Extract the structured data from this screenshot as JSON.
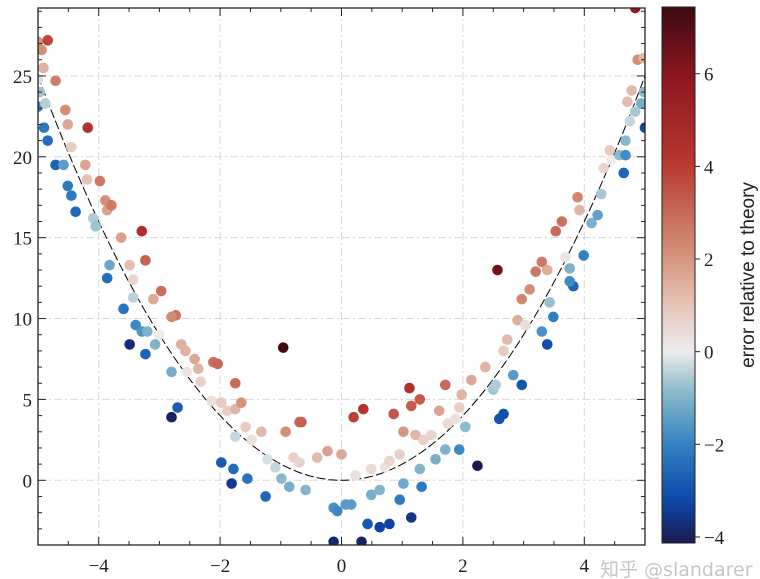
{
  "chart_data": {
    "type": "scatter",
    "title": "",
    "xlabel": "",
    "ylabel": "",
    "xlim": [
      -5,
      5
    ],
    "ylim": [
      -4,
      29.2
    ],
    "xticks": [
      -4,
      -2,
      0,
      2,
      4
    ],
    "yticks": [
      0,
      5,
      10,
      15,
      20,
      25
    ],
    "grid": true,
    "theory_curve": "y = x^2",
    "colorbar": {
      "label": "error relative to theory",
      "range": [
        -4.13,
        7.44
      ],
      "ticks": [
        -4,
        -2,
        0,
        2,
        4,
        6
      ],
      "colormap": [
        "#1a1a50",
        "#0d47a8",
        "#2f7fc1",
        "#8fbccc",
        "#ececec",
        "#e8c9bd",
        "#d28c74",
        "#b8372e",
        "#8c1620",
        "#3c0a10"
      ]
    },
    "points": [
      [
        -5.0,
        27.1
      ],
      [
        -4.84,
        27.2
      ],
      [
        -4.94,
        26.6
      ],
      [
        -4.91,
        25.5
      ],
      [
        -5.0,
        24.8
      ],
      [
        -4.97,
        24.0
      ],
      [
        -5.0,
        23.1
      ],
      [
        -4.88,
        23.3
      ],
      [
        -4.71,
        24.7
      ],
      [
        -4.9,
        21.8
      ],
      [
        -4.84,
        21.0
      ],
      [
        -4.71,
        19.5
      ],
      [
        -4.55,
        22.9
      ],
      [
        -4.51,
        22.0
      ],
      [
        -4.58,
        19.5
      ],
      [
        -4.51,
        18.2
      ],
      [
        -4.45,
        17.6
      ],
      [
        -4.38,
        16.6
      ],
      [
        -4.18,
        21.8
      ],
      [
        -4.45,
        20.6
      ],
      [
        -4.22,
        19.5
      ],
      [
        -4.19,
        18.6
      ],
      [
        -4.09,
        16.2
      ],
      [
        -4.05,
        15.7
      ],
      [
        -3.98,
        18.5
      ],
      [
        -3.89,
        17.3
      ],
      [
        -3.86,
        16.7
      ],
      [
        -3.79,
        17.0
      ],
      [
        -3.63,
        15.0
      ],
      [
        -3.82,
        13.3
      ],
      [
        -3.86,
        12.5
      ],
      [
        -3.29,
        15.4
      ],
      [
        -3.23,
        13.6
      ],
      [
        -3.49,
        13.3
      ],
      [
        -3.43,
        12.4
      ],
      [
        -3.43,
        11.3
      ],
      [
        -3.59,
        10.6
      ],
      [
        -3.39,
        9.6
      ],
      [
        -3.29,
        9.2
      ],
      [
        -3.2,
        9.2
      ],
      [
        -3.1,
        11.2
      ],
      [
        -2.97,
        11.7
      ],
      [
        -2.73,
        10.2
      ],
      [
        -2.8,
        10.1
      ],
      [
        -3.49,
        8.4
      ],
      [
        -3.23,
        7.8
      ],
      [
        -3.07,
        8.4
      ],
      [
        -3.0,
        9.0
      ],
      [
        -2.64,
        8.4
      ],
      [
        -2.57,
        8.0
      ],
      [
        -2.8,
        6.7
      ],
      [
        -2.55,
        6.7
      ],
      [
        -2.42,
        7.5
      ],
      [
        -2.36,
        6.9
      ],
      [
        -2.32,
        6.1
      ],
      [
        -2.11,
        7.3
      ],
      [
        -2.04,
        7.2
      ],
      [
        -2.7,
        4.5
      ],
      [
        -2.8,
        3.9
      ],
      [
        -1.75,
        6.0
      ],
      [
        -2.14,
        4.9
      ],
      [
        -1.98,
        4.8
      ],
      [
        -1.88,
        4.3
      ],
      [
        -1.75,
        4.4
      ],
      [
        -1.65,
        4.8
      ],
      [
        -1.58,
        3.3
      ],
      [
        -1.48,
        2.5
      ],
      [
        -1.32,
        3.0
      ],
      [
        -1.75,
        2.7
      ],
      [
        -1.98,
        1.1
      ],
      [
        -1.78,
        0.7
      ],
      [
        -1.81,
        -0.2
      ],
      [
        -1.55,
        0.1
      ],
      [
        -1.25,
        -1.0
      ],
      [
        -1.22,
        1.3
      ],
      [
        -1.09,
        0.8
      ],
      [
        -0.96,
        8.2
      ],
      [
        -0.92,
        3.0
      ],
      [
        -0.69,
        3.6
      ],
      [
        -0.66,
        3.6
      ],
      [
        -0.79,
        1.4
      ],
      [
        -0.69,
        1.1
      ],
      [
        -0.99,
        0.1
      ],
      [
        -0.86,
        -0.4
      ],
      [
        -0.59,
        -0.6
      ],
      [
        -0.4,
        1.4
      ],
      [
        -0.23,
        1.8
      ],
      [
        0.0,
        1.6
      ],
      [
        0.23,
        0.3
      ],
      [
        -0.13,
        -1.7
      ],
      [
        0.07,
        -1.5
      ],
      [
        -0.07,
        -1.9
      ],
      [
        0.16,
        -1.5
      ],
      [
        -0.13,
        -3.8
      ],
      [
        0.33,
        -3.8
      ],
      [
        0.2,
        3.9
      ],
      [
        0.36,
        4.4
      ],
      [
        0.43,
        -2.7
      ],
      [
        0.63,
        -2.9
      ],
      [
        0.49,
        -0.9
      ],
      [
        0.63,
        -0.6
      ],
      [
        0.49,
        0.7
      ],
      [
        0.72,
        0.8
      ],
      [
        0.79,
        1.2
      ],
      [
        0.96,
        1.6
      ],
      [
        0.86,
        4.1
      ],
      [
        1.12,
        5.7
      ],
      [
        1.15,
        4.6
      ],
      [
        1.02,
        3.0
      ],
      [
        0.96,
        -1.2
      ],
      [
        0.79,
        -2.7
      ],
      [
        1.15,
        -2.3
      ],
      [
        1.02,
        -0.2
      ],
      [
        1.32,
        -0.4
      ],
      [
        1.29,
        0.7
      ],
      [
        1.22,
        2.8
      ],
      [
        1.35,
        2.5
      ],
      [
        1.29,
        5.0
      ],
      [
        1.48,
        2.8
      ],
      [
        1.71,
        5.9
      ],
      [
        1.61,
        4.3
      ],
      [
        1.71,
        1.9
      ],
      [
        1.55,
        1.3
      ],
      [
        1.75,
        3.5
      ],
      [
        1.88,
        3.8
      ],
      [
        1.98,
        5.3
      ],
      [
        1.94,
        4.5
      ],
      [
        2.04,
        3.3
      ],
      [
        2.14,
        6.2
      ],
      [
        1.94,
        1.9
      ],
      [
        2.24,
        0.9
      ],
      [
        2.37,
        7.0
      ],
      [
        2.5,
        5.6
      ],
      [
        2.6,
        3.8
      ],
      [
        2.67,
        4.1
      ],
      [
        2.54,
        5.9
      ],
      [
        2.57,
        13.0
      ],
      [
        2.67,
        8.0
      ],
      [
        2.73,
        8.7
      ],
      [
        2.83,
        6.5
      ],
      [
        2.97,
        5.9
      ],
      [
        2.9,
        9.9
      ],
      [
        2.97,
        11.2
      ],
      [
        3.03,
        9.6
      ],
      [
        3.1,
        11.8
      ],
      [
        3.2,
        12.9
      ],
      [
        3.3,
        13.5
      ],
      [
        3.39,
        13.0
      ],
      [
        3.43,
        11.0
      ],
      [
        3.49,
        10.1
      ],
      [
        3.3,
        9.2
      ],
      [
        3.39,
        8.4
      ],
      [
        3.53,
        15.4
      ],
      [
        3.63,
        16.0
      ],
      [
        3.69,
        13.8
      ],
      [
        3.76,
        13.1
      ],
      [
        3.82,
        12.0
      ],
      [
        3.76,
        12.3
      ],
      [
        3.89,
        17.5
      ],
      [
        3.92,
        16.7
      ],
      [
        3.99,
        13.9
      ],
      [
        4.12,
        15.9
      ],
      [
        4.22,
        16.4
      ],
      [
        4.28,
        17.7
      ],
      [
        4.32,
        19.3
      ],
      [
        4.42,
        20.4
      ],
      [
        4.45,
        19.8
      ],
      [
        4.58,
        20.1
      ],
      [
        4.65,
        19.0
      ],
      [
        4.68,
        20.1
      ],
      [
        4.68,
        21.0
      ],
      [
        4.75,
        22.2
      ],
      [
        4.71,
        23.4
      ],
      [
        4.78,
        24.1
      ],
      [
        4.84,
        22.8
      ],
      [
        4.94,
        23.3
      ],
      [
        4.98,
        24.0
      ],
      [
        5.0,
        21.8
      ],
      [
        4.88,
        26.0
      ],
      [
        4.98,
        26.1
      ],
      [
        4.84,
        29.2
      ]
    ]
  },
  "watermark": "知乎 @slandarer"
}
